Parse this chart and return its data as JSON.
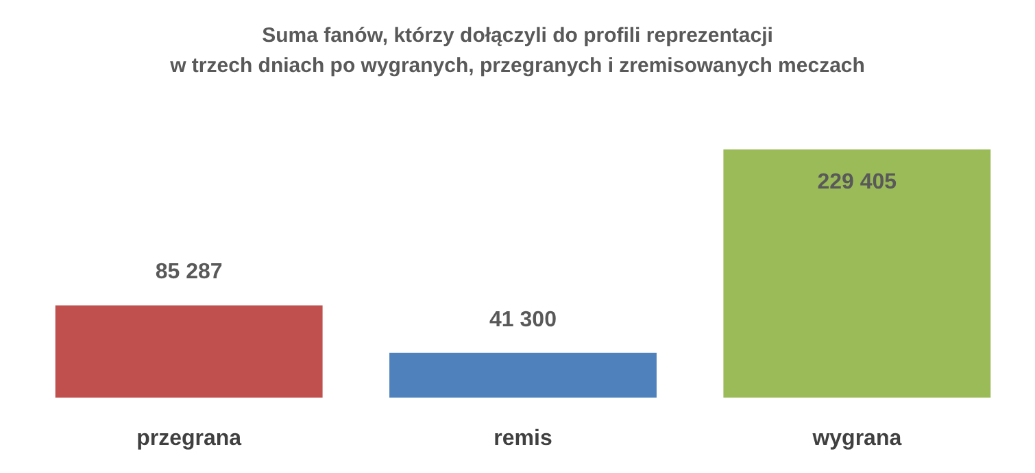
{
  "chart_data": {
    "type": "bar",
    "title": "Suma fanów, którzy dołączyli do profili reprezentacji\nw trzech dniach po wygranych, przegranych i zremisowanych meczach",
    "categories": [
      "przegrana",
      "remis",
      "wygrana"
    ],
    "values": [
      85287,
      41300,
      229405
    ],
    "colors": [
      "#c0504d",
      "#4f81bd",
      "#9bbb59"
    ],
    "value_labels": [
      "85 287",
      "41 300",
      "229 405"
    ]
  }
}
